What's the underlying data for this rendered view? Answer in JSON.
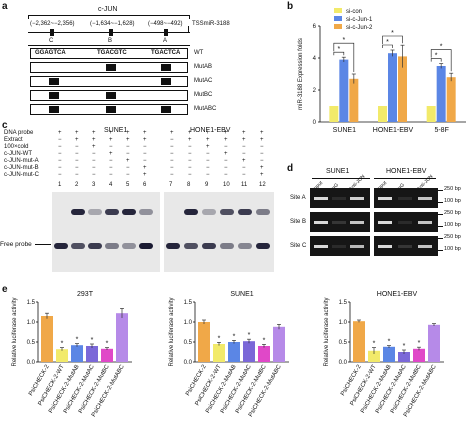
{
  "panels": {
    "a": "a",
    "b": "b",
    "c": "c",
    "d": "d",
    "e": "e"
  },
  "panel_a": {
    "gene": "c-JUN",
    "positions": [
      "(−2,362~−2,356)",
      "(−1,634~−1,628)",
      "(−498~−492)"
    ],
    "tss": "TSSmiR-3188",
    "sites": [
      "C",
      "B",
      "A"
    ],
    "seqs": [
      "GGAGTCA",
      "TGACGTC",
      "TGACTCA"
    ],
    "rows": [
      "WT",
      "MutAB",
      "MutAC",
      "MutBC",
      "MutABC"
    ]
  },
  "panel_b": {
    "legend": [
      "si-con",
      "si-c-Jun-1",
      "si-c-Jun-2"
    ],
    "colors": [
      "#f2ea6a",
      "#5b86e5",
      "#f0a848"
    ],
    "sig": "*",
    "chart_data": {
      "type": "bar",
      "categories": [
        "SUNE1",
        "HONE1-EBV",
        "5-8F"
      ],
      "series": [
        {
          "name": "si-con",
          "values": [
            1.0,
            1.0,
            1.0
          ],
          "err": [
            0,
            0,
            0
          ]
        },
        {
          "name": "si-c-Jun-1",
          "values": [
            3.9,
            4.3,
            3.5
          ],
          "err": [
            0.15,
            0.2,
            0.15
          ]
        },
        {
          "name": "si-c-Jun-2",
          "values": [
            2.7,
            4.1,
            2.8
          ],
          "err": [
            0.3,
            0.7,
            0.25
          ]
        }
      ],
      "ylabel": "miR-3188 Expression folds",
      "ylim": [
        0,
        6
      ],
      "yticks": [
        0,
        2,
        4,
        6
      ]
    }
  },
  "panel_c": {
    "row_labels": [
      "DNA probe",
      "Extract",
      "100×cold",
      "c-JUN-WT",
      "c-JUN-mut-A",
      "c-JUN-mut-B",
      "c-JUN-mut-C"
    ],
    "gel1_title": "SUNE1",
    "gel2_title": "HONE1-EBV",
    "signs1": [
      [
        "+",
        "+",
        "+",
        "+",
        "+",
        "+"
      ],
      [
        "−",
        "+",
        "+",
        "+",
        "+",
        "+"
      ],
      [
        "−",
        "−",
        "+",
        "−",
        "−",
        "−"
      ],
      [
        "−",
        "−",
        "−",
        "+",
        "−",
        "−"
      ],
      [
        "−",
        "−",
        "−",
        "−",
        "+",
        "−"
      ],
      [
        "−",
        "−",
        "−",
        "−",
        "−",
        "+"
      ],
      [
        "−",
        "−",
        "−",
        "−",
        "−",
        "+"
      ]
    ],
    "signs2": [
      [
        "+",
        "+",
        "+",
        "+",
        "+",
        "+"
      ],
      [
        "−",
        "+",
        "+",
        "+",
        "+",
        "+"
      ],
      [
        "−",
        "−",
        "+",
        "−",
        "−",
        "−"
      ],
      [
        "−",
        "−",
        "−",
        "+",
        "−",
        "−"
      ],
      [
        "−",
        "−",
        "−",
        "−",
        "+",
        "−"
      ],
      [
        "−",
        "−",
        "−",
        "−",
        "−",
        "+"
      ],
      [
        "−",
        "−",
        "−",
        "−",
        "−",
        "+"
      ]
    ],
    "lanes1": [
      "1",
      "2",
      "3",
      "4",
      "5",
      "6"
    ],
    "lanes2": [
      "7",
      "8",
      "9",
      "10",
      "11",
      "12"
    ],
    "free_probe": "Free probe"
  },
  "panel_d": {
    "title1": "SUNE1",
    "title2": "HONE1-EBV",
    "cols": [
      "Input",
      "IgG",
      "Anti-JUN"
    ],
    "sites": [
      "Site A",
      "Site B",
      "Site C"
    ],
    "markers": [
      "250 bp",
      "100 bp"
    ]
  },
  "panel_e": {
    "colors": [
      "#f0a848",
      "#f2ea6a",
      "#5b86e5",
      "#7b68d8",
      "#e048c8",
      "#b68ae8"
    ],
    "sig": "*",
    "ylabel": "Relative luciferase activity",
    "categories": [
      "PsiCHECK-2",
      "PsiCHECK-2-WT",
      "PsiCHECK-2-MutAB",
      "PsiCHECK-2-MutAC",
      "PsiCHECK-2-MutBC",
      "PsiCHECK-2-MutABC"
    ],
    "chart_data": [
      {
        "type": "bar",
        "title": "293T",
        "categories": [
          "PsiCHECK-2",
          "PsiCHECK-2-WT",
          "PsiCHECK-2-MutAB",
          "PsiCHECK-2-MutAC",
          "PsiCHECK-2-MutBC",
          "PsiCHECK-2-MutABC"
        ],
        "values": [
          1.15,
          0.32,
          0.42,
          0.4,
          0.33,
          1.22
        ],
        "err": [
          0.07,
          0.04,
          0.04,
          0.05,
          0.03,
          0.12
        ],
        "sig": [
          false,
          true,
          true,
          true,
          true,
          false
        ],
        "ylim": [
          0,
          1.5
        ],
        "yticks": [
          "0.0",
          "0.5",
          "1.0",
          "1.5"
        ]
      },
      {
        "type": "bar",
        "title": "SUNE1",
        "categories": [
          "PsiCHECK-2",
          "PsiCHECK-2-WT",
          "PsiCHECK-2-MutAB",
          "PsiCHECK-2-MutAC",
          "PsiCHECK-2-MutBC",
          "PsiCHECK-2-MutABC"
        ],
        "values": [
          1.0,
          0.45,
          0.5,
          0.52,
          0.4,
          0.88
        ],
        "err": [
          0.05,
          0.04,
          0.04,
          0.05,
          0.04,
          0.06
        ],
        "sig": [
          false,
          true,
          true,
          true,
          true,
          false
        ],
        "ylim": [
          0,
          1.5
        ],
        "yticks": [
          "0.0",
          "0.5",
          "1.0",
          "1.5"
        ]
      },
      {
        "type": "bar",
        "title": "HONE1-EBV",
        "categories": [
          "PsiCHECK-2",
          "PsiCHECK-2-WT",
          "PsiCHECK-2-MutAB",
          "PsiCHECK-2-MutAC",
          "PsiCHECK-2-MutBC",
          "PsiCHECK-2-MutABC"
        ],
        "values": [
          1.02,
          0.28,
          0.38,
          0.25,
          0.33,
          0.93
        ],
        "err": [
          0.03,
          0.08,
          0.03,
          0.05,
          0.04,
          0.03
        ],
        "sig": [
          false,
          true,
          true,
          true,
          true,
          false
        ],
        "ylim": [
          0,
          1.5
        ],
        "yticks": [
          "0.0",
          "0.5",
          "1.0",
          "1.5"
        ]
      }
    ]
  }
}
